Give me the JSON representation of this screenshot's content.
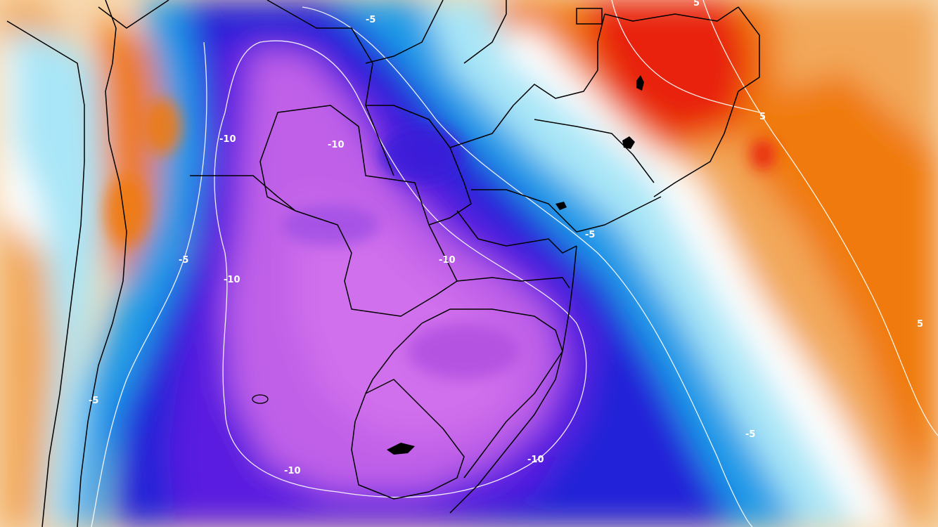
{
  "map": {
    "colors": {
      "very_warm": "#e8200a",
      "warm": "#f07a10",
      "mild_warm": "#f2a85a",
      "light_warm": "#f7d9b0",
      "neutral": "#ffffff",
      "light_cold": "#a9e6f7",
      "cold": "#1a9be8",
      "very_cold": "#2020d8",
      "deep_cold": "#5a1ee0",
      "extreme_cold": "#c060e8",
      "contour": "#ffffff",
      "border": "#000000"
    },
    "contour_labels": [
      "-5",
      "-10",
      "-10",
      "-10",
      "-5",
      "-10",
      "-10",
      "5",
      "5",
      "-5",
      "-5",
      "-10",
      "-5",
      "5"
    ]
  }
}
